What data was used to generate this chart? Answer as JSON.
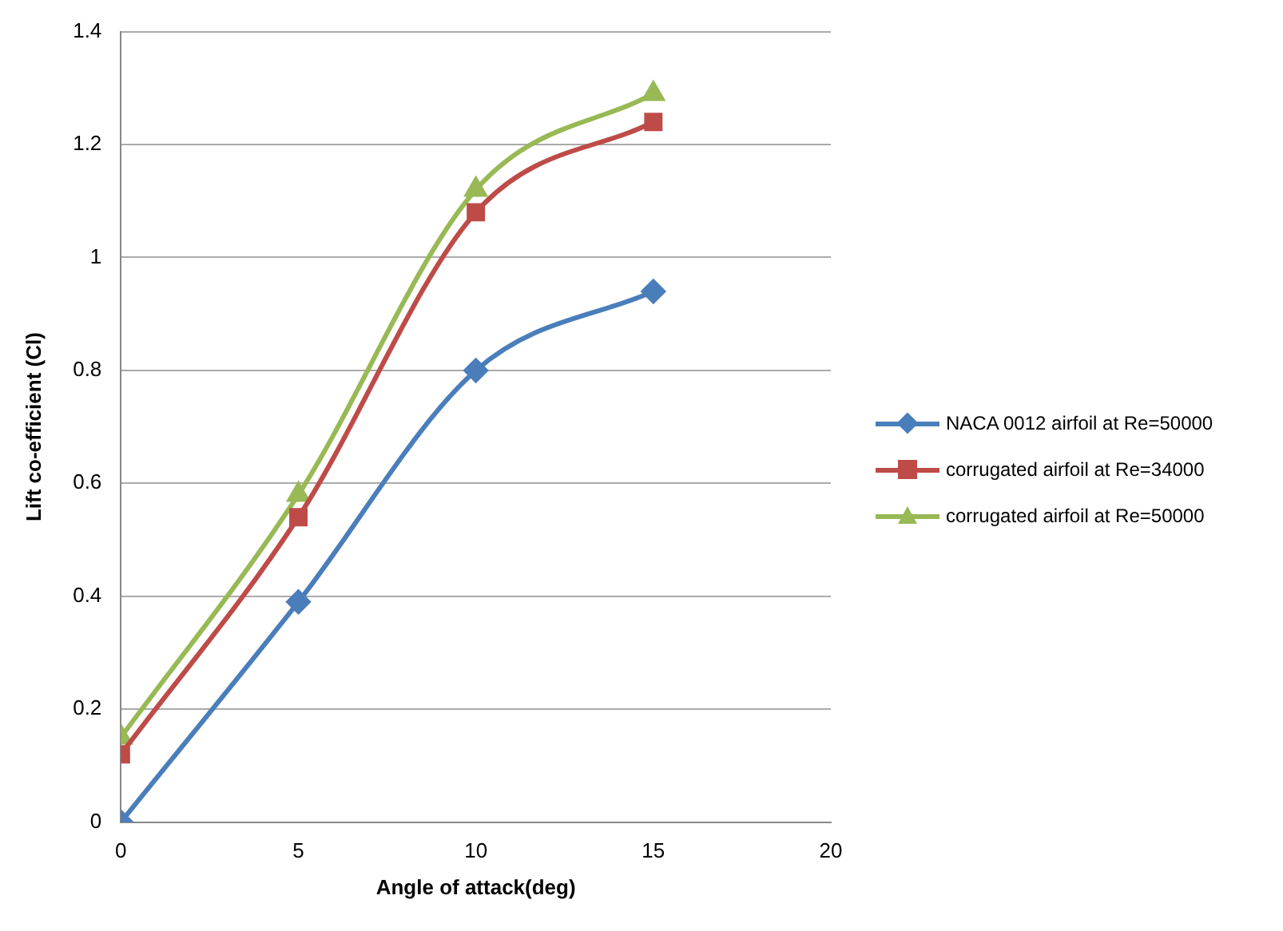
{
  "chart_data": {
    "type": "line",
    "xlabel": "Angle of attack(deg)",
    "ylabel": "Lift co-efficient (Cl)",
    "x": [
      0,
      5,
      10,
      15
    ],
    "series": [
      {
        "name": "NACA 0012 airfoil at Re=50000",
        "color": "#4a7ebb",
        "marker": "diamond",
        "values": [
          0,
          0.39,
          0.8,
          0.94
        ]
      },
      {
        "name": "corrugated airfoil at Re=34000",
        "color": "#be4b48",
        "marker": "square",
        "values": [
          0.12,
          0.54,
          1.08,
          1.24
        ]
      },
      {
        "name": "corrugated airfoil at Re=50000",
        "color": "#98b954",
        "marker": "triangle",
        "values": [
          0.15,
          0.58,
          1.12,
          1.29
        ]
      }
    ],
    "xlim": [
      0,
      20
    ],
    "xticks": [
      0,
      5,
      10,
      15,
      20
    ],
    "ylim": [
      0,
      1.4
    ],
    "yticks": [
      0,
      0.2,
      0.4,
      0.6,
      0.8,
      1,
      1.2,
      1.4
    ],
    "grid": "y",
    "legend": "right",
    "line_style": "solid"
  }
}
